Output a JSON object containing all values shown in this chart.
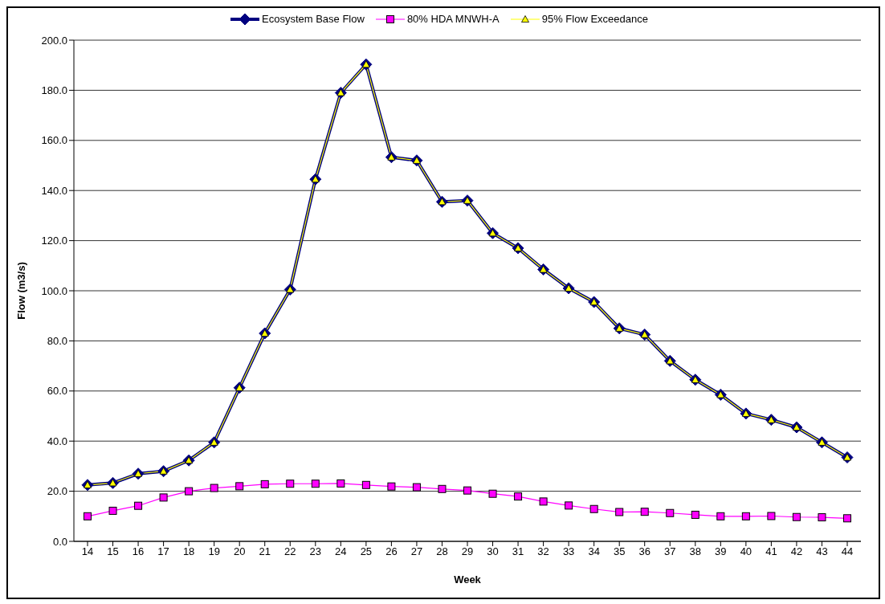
{
  "chart_data": {
    "type": "line",
    "xlabel": "Week",
    "ylabel": "Flow (m3/s)",
    "categories": [
      "14",
      "15",
      "16",
      "17",
      "18",
      "19",
      "20",
      "21",
      "22",
      "23",
      "24",
      "25",
      "26",
      "27",
      "28",
      "29",
      "30",
      "31",
      "32",
      "33",
      "34",
      "35",
      "36",
      "37",
      "38",
      "39",
      "40",
      "41",
      "42",
      "43",
      "44"
    ],
    "series": [
      {
        "name": "Ecosystem Base Flow",
        "color": "#000080",
        "marker": "diamond",
        "values": [
          22.5,
          23.3,
          27,
          28,
          32.3,
          39.5,
          61.3,
          83,
          100.5,
          144.5,
          179,
          190.3,
          153.3,
          152,
          135.5,
          136,
          123,
          117,
          108.5,
          101,
          95.5,
          85,
          82.5,
          72,
          64.5,
          58.5,
          51,
          48.5,
          45.5,
          39.5,
          33.5
        ]
      },
      {
        "name": "80% HDA MNWH-A",
        "color": "#ff00ff",
        "marker": "square",
        "values": [
          10,
          12.2,
          14.2,
          17.5,
          20,
          21.3,
          22,
          22.8,
          23,
          23,
          23.1,
          22.5,
          21.9,
          21.6,
          20.9,
          20.3,
          19,
          17.9,
          15.9,
          14.3,
          12.9,
          11.7,
          11.8,
          11.3,
          10.6,
          10,
          10,
          10.1,
          9.7,
          9.6,
          9.2
        ]
      },
      {
        "name": "95% Flow Exceedance",
        "color": "#ffff00",
        "marker": "triangle",
        "values": [
          22.5,
          23.3,
          27,
          28,
          32.3,
          39.5,
          61.3,
          83,
          100.5,
          144.5,
          179,
          190.3,
          153.3,
          152,
          135.5,
          136,
          123,
          117,
          108.5,
          101,
          95.5,
          85,
          82.5,
          72,
          64.5,
          58.5,
          51,
          48.5,
          45.5,
          39.5,
          33.5
        ]
      }
    ],
    "ylim": [
      0,
      200
    ],
    "yticks": [
      {
        "value": 0,
        "label": "0.0"
      },
      {
        "value": 20,
        "label": "20.0"
      },
      {
        "value": 40,
        "label": "40.0"
      },
      {
        "value": 60,
        "label": "60.0"
      },
      {
        "value": 80,
        "label": "80.0"
      },
      {
        "value": 100,
        "label": "100.0"
      },
      {
        "value": 120,
        "label": "120.0"
      },
      {
        "value": 140,
        "label": "140.0"
      },
      {
        "value": 160,
        "label": "160.0"
      },
      {
        "value": 180,
        "label": "180.0"
      },
      {
        "value": 200,
        "label": "200.0"
      }
    ],
    "grid": "y",
    "legend": "top"
  }
}
